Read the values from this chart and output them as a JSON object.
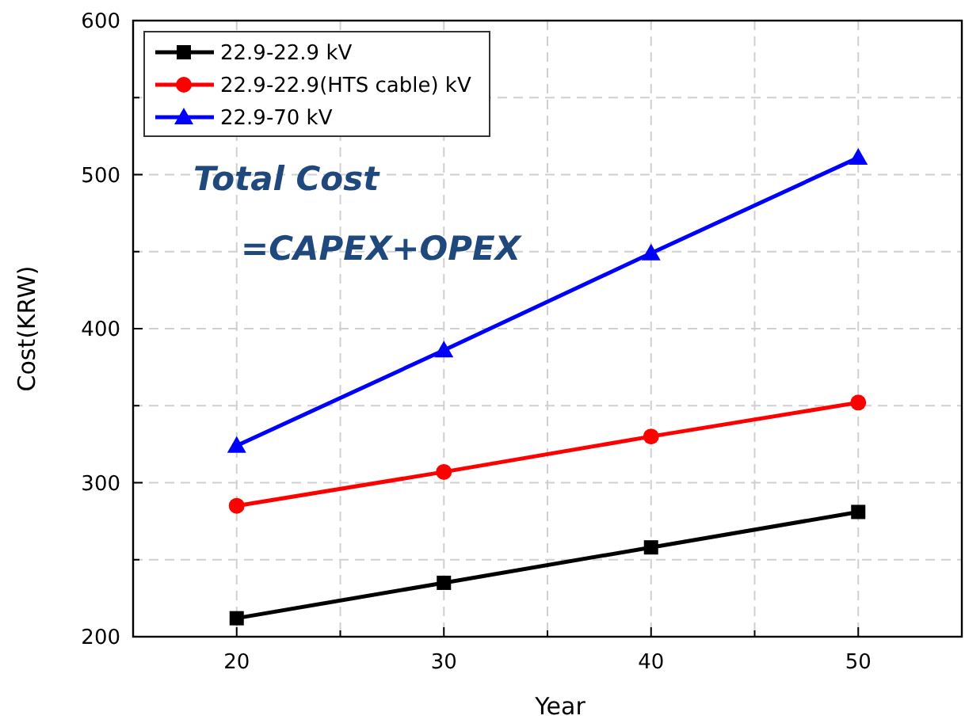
{
  "chart_data": {
    "type": "line",
    "xlabel": "Year",
    "ylabel": "Cost(KRW)",
    "x": [
      20,
      30,
      40,
      50
    ],
    "series": [
      {
        "name": "22.9-22.9 kV",
        "color": "#000000",
        "marker": "square",
        "values": [
          212,
          235,
          258,
          281
        ]
      },
      {
        "name": "22.9-22.9(HTS cable) kV",
        "color": "#ff0000",
        "marker": "circle",
        "values": [
          285,
          307,
          330,
          352
        ]
      },
      {
        "name": "22.9-70 kV",
        "color": "#0000ff",
        "marker": "triangle",
        "values": [
          324,
          386,
          449,
          511
        ]
      }
    ],
    "xlim": [
      15,
      55
    ],
    "xticks": [
      {
        "value": 15,
        "label": null
      },
      20,
      {
        "value": 25,
        "label": null
      },
      30,
      {
        "value": 35,
        "label": null
      },
      40,
      {
        "value": 45,
        "label": null
      },
      50,
      {
        "value": 55,
        "label": null
      }
    ],
    "ylim": [
      200,
      600
    ],
    "yticks": [
      200,
      {
        "value": 250,
        "label": null
      },
      300,
      {
        "value": 350,
        "label": null
      },
      400,
      {
        "value": 450,
        "label": null
      },
      500,
      {
        "value": 550,
        "label": null
      },
      600
    ],
    "grid": true,
    "legend": "top left",
    "line_style": "solid",
    "annotations": [
      "Total Cost",
      "=CAPEX+OPEX"
    ]
  }
}
